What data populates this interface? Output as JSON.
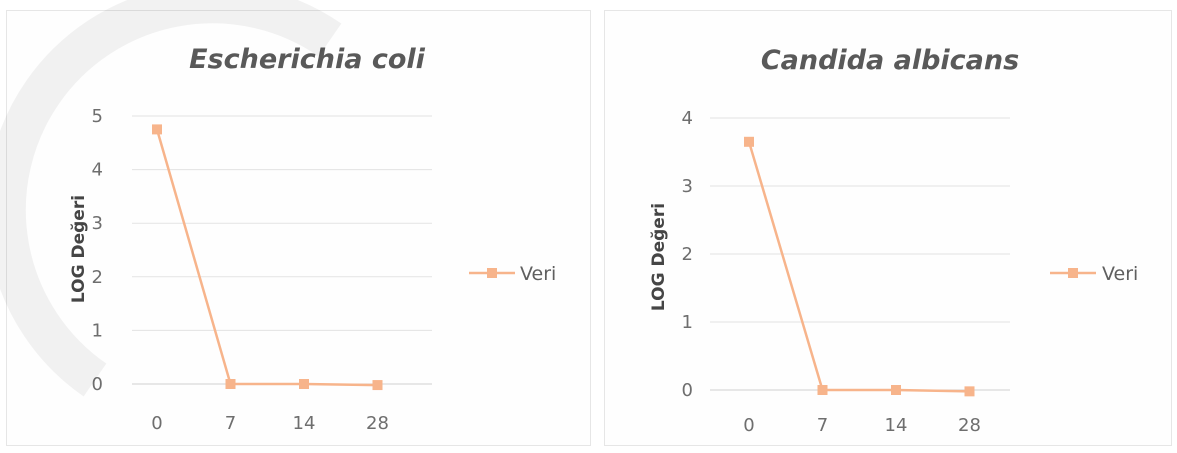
{
  "chart_data": [
    {
      "type": "line",
      "title": "Escherichia coli",
      "xlabel": "",
      "ylabel": "LOG Değeri",
      "categories": [
        "0",
        "7",
        "14",
        "28"
      ],
      "series": [
        {
          "name": "Veri",
          "values": [
            4.75,
            0.0,
            0.0,
            -0.02
          ]
        }
      ],
      "ylim": [
        0,
        5
      ],
      "yticks": [
        0,
        1,
        2,
        3,
        4,
        5
      ],
      "grid": true,
      "legend": "right",
      "color": "#f7b48b"
    },
    {
      "type": "line",
      "title": "Candida albicans",
      "xlabel": "",
      "ylabel": "LOG Değeri",
      "categories": [
        "0",
        "7",
        "14",
        "28"
      ],
      "series": [
        {
          "name": "Veri",
          "values": [
            3.65,
            0.0,
            0.0,
            -0.02
          ]
        }
      ],
      "ylim": [
        0,
        4
      ],
      "yticks": [
        0,
        1,
        2,
        3,
        4
      ],
      "grid": true,
      "legend": "right",
      "color": "#f7b48b"
    }
  ]
}
